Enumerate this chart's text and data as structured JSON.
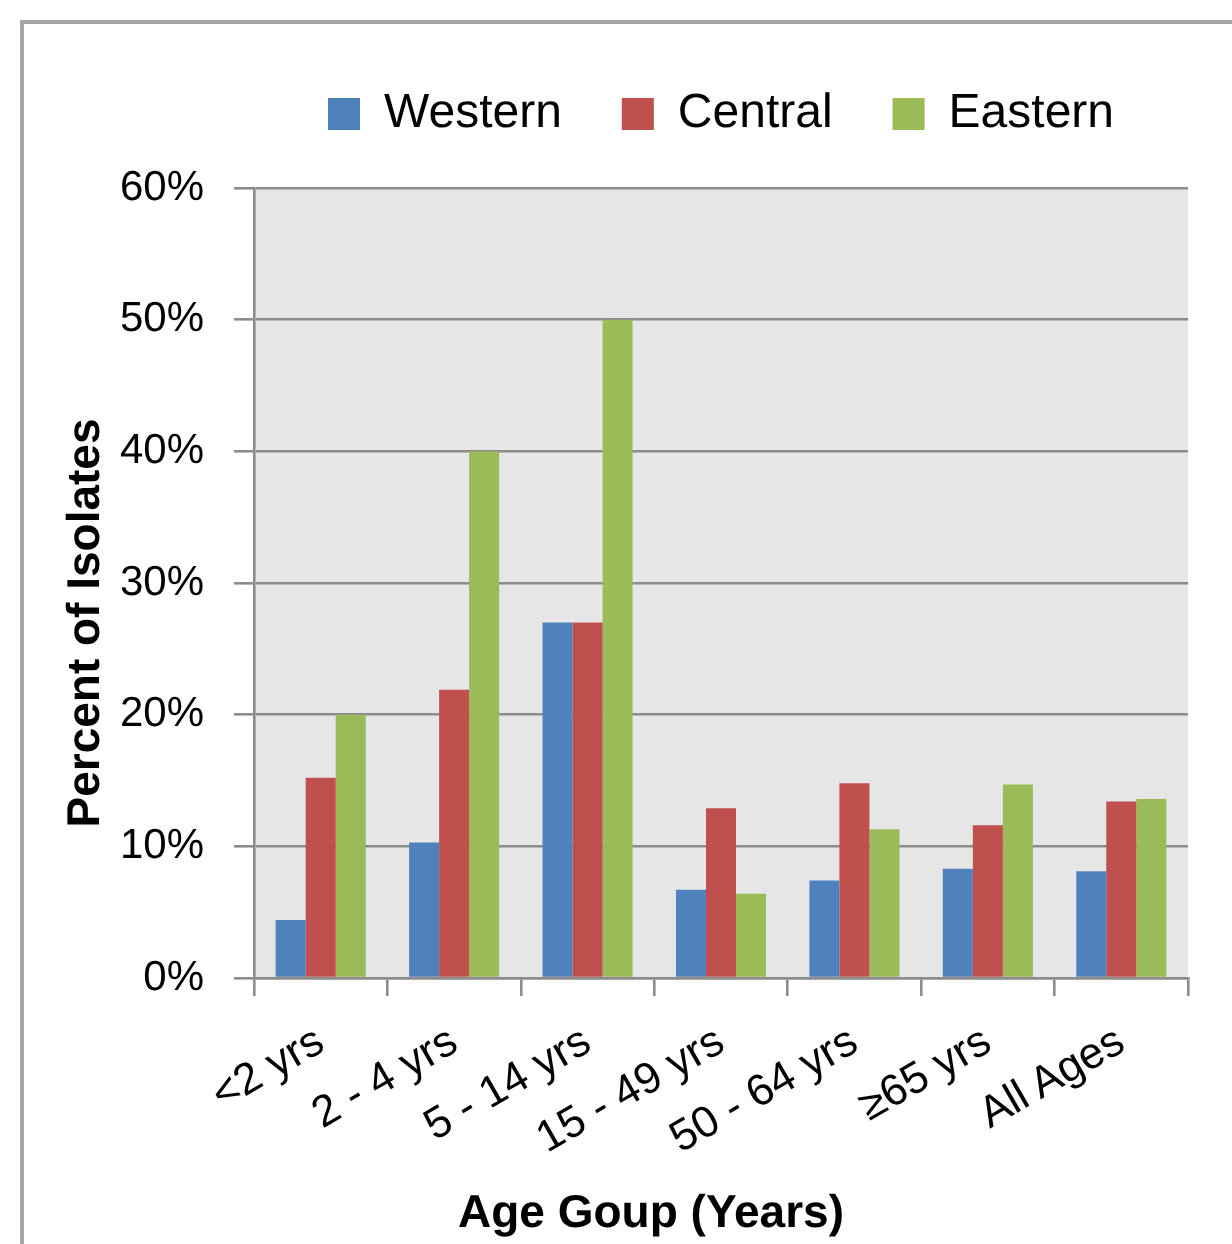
{
  "chart_data": {
    "type": "bar",
    "xlabel": "Age Goup (Years)",
    "ylabel": "Percent of Isolates",
    "categories": [
      "<2 yrs",
      "2 - 4 yrs",
      "5 - 14 yrs",
      "15 - 49 yrs",
      "50 - 64 yrs",
      "≥65 yrs",
      "All Ages"
    ],
    "series": [
      {
        "name": "Western",
        "color": "#4f81bd",
        "values": [
          4.4,
          10.3,
          27.0,
          6.7,
          7.4,
          8.3,
          8.1
        ]
      },
      {
        "name": "Central",
        "color": "#c0504d",
        "values": [
          15.2,
          21.9,
          27.0,
          12.9,
          14.8,
          11.6,
          13.4
        ]
      },
      {
        "name": "Eastern",
        "color": "#9bbb59",
        "values": [
          20.0,
          40.0,
          50.0,
          6.4,
          11.3,
          14.7,
          13.6
        ]
      }
    ],
    "ylim": [
      0,
      60
    ],
    "yticks": [
      {
        "value": 0,
        "label": "0%"
      },
      {
        "value": 10,
        "label": "10%"
      },
      {
        "value": 20,
        "label": "20%"
      },
      {
        "value": 30,
        "label": "30%"
      },
      {
        "value": 40,
        "label": "40%"
      },
      {
        "value": 50,
        "label": "50%"
      },
      {
        "value": 60,
        "label": "60%"
      }
    ],
    "grid": "y",
    "legend": "top"
  }
}
